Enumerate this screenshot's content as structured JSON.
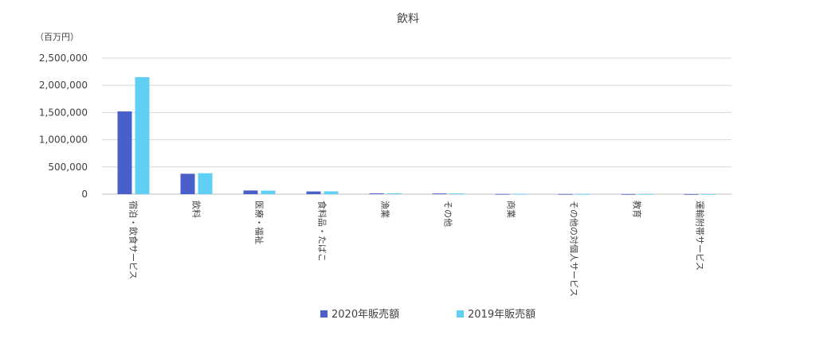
{
  "chart_data": {
    "type": "bar",
    "title": "飲料",
    "unit_label": "（百万円）",
    "xlabel": "",
    "ylabel": "",
    "ylim": [
      0,
      2500000
    ],
    "y_ticks": [
      0,
      500000,
      1000000,
      1500000,
      2000000,
      2500000
    ],
    "y_tick_labels": [
      "0",
      "500,000",
      "1,000,000",
      "1,500,000",
      "2,000,000",
      "2,500,000"
    ],
    "grid": true,
    "legend_position": "bottom",
    "categories": [
      "宿泊・飲食サービス",
      "飲料",
      "医療・福祉",
      "食料品・たばこ",
      "漁業",
      "その他",
      "商業",
      "その他の対個人サービス",
      "教育",
      "運輸附帯サービス"
    ],
    "series": [
      {
        "name": "2020年販売額",
        "color": "#4a5fc9",
        "values": [
          1520000,
          375000,
          68000,
          50000,
          15000,
          13000,
          3000,
          2000,
          1500,
          1000
        ]
      },
      {
        "name": "2019年販売額",
        "color": "#5fd0f4",
        "values": [
          2150000,
          385000,
          65000,
          52000,
          16000,
          14000,
          3000,
          2000,
          1500,
          1000
        ]
      }
    ]
  }
}
